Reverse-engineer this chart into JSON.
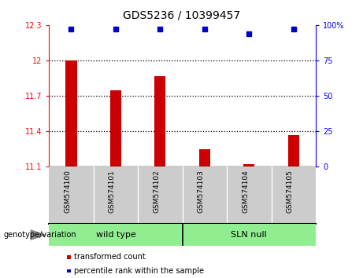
{
  "title": "GDS5236 / 10399457",
  "samples": [
    "GSM574100",
    "GSM574101",
    "GSM574102",
    "GSM574103",
    "GSM574104",
    "GSM574105"
  ],
  "transformed_counts": [
    12.0,
    11.75,
    11.87,
    11.25,
    11.12,
    11.37
  ],
  "percentile_ranks": [
    97,
    97,
    97,
    97,
    94,
    97
  ],
  "ylim_left": [
    11.1,
    12.3
  ],
  "ylim_right": [
    0,
    100
  ],
  "yticks_left": [
    11.1,
    11.4,
    11.7,
    12.0,
    12.3
  ],
  "yticks_right": [
    0,
    25,
    50,
    75,
    100
  ],
  "ytick_labels_left": [
    "11.1",
    "11.4",
    "11.7",
    "12",
    "12.3"
  ],
  "ytick_labels_right": [
    "0",
    "25",
    "50",
    "75",
    "100%"
  ],
  "bar_color": "#cc0000",
  "dot_color": "#0000cc",
  "group_label": "genotype/variation",
  "group1_label": "wild type",
  "group2_label": "SLN null",
  "group1_indices": [
    0,
    1,
    2
  ],
  "group2_indices": [
    3,
    4,
    5
  ],
  "group_color": "#90ee90",
  "sample_bg_color": "#cccccc",
  "legend_items": [
    {
      "color": "#cc0000",
      "label": "transformed count"
    },
    {
      "color": "#0000cc",
      "label": "percentile rank within the sample"
    }
  ],
  "background_color": "#ffffff",
  "dotted_gridlines": [
    11.4,
    11.7,
    12.0
  ],
  "bar_bottom": 11.1,
  "bar_width": 0.25
}
